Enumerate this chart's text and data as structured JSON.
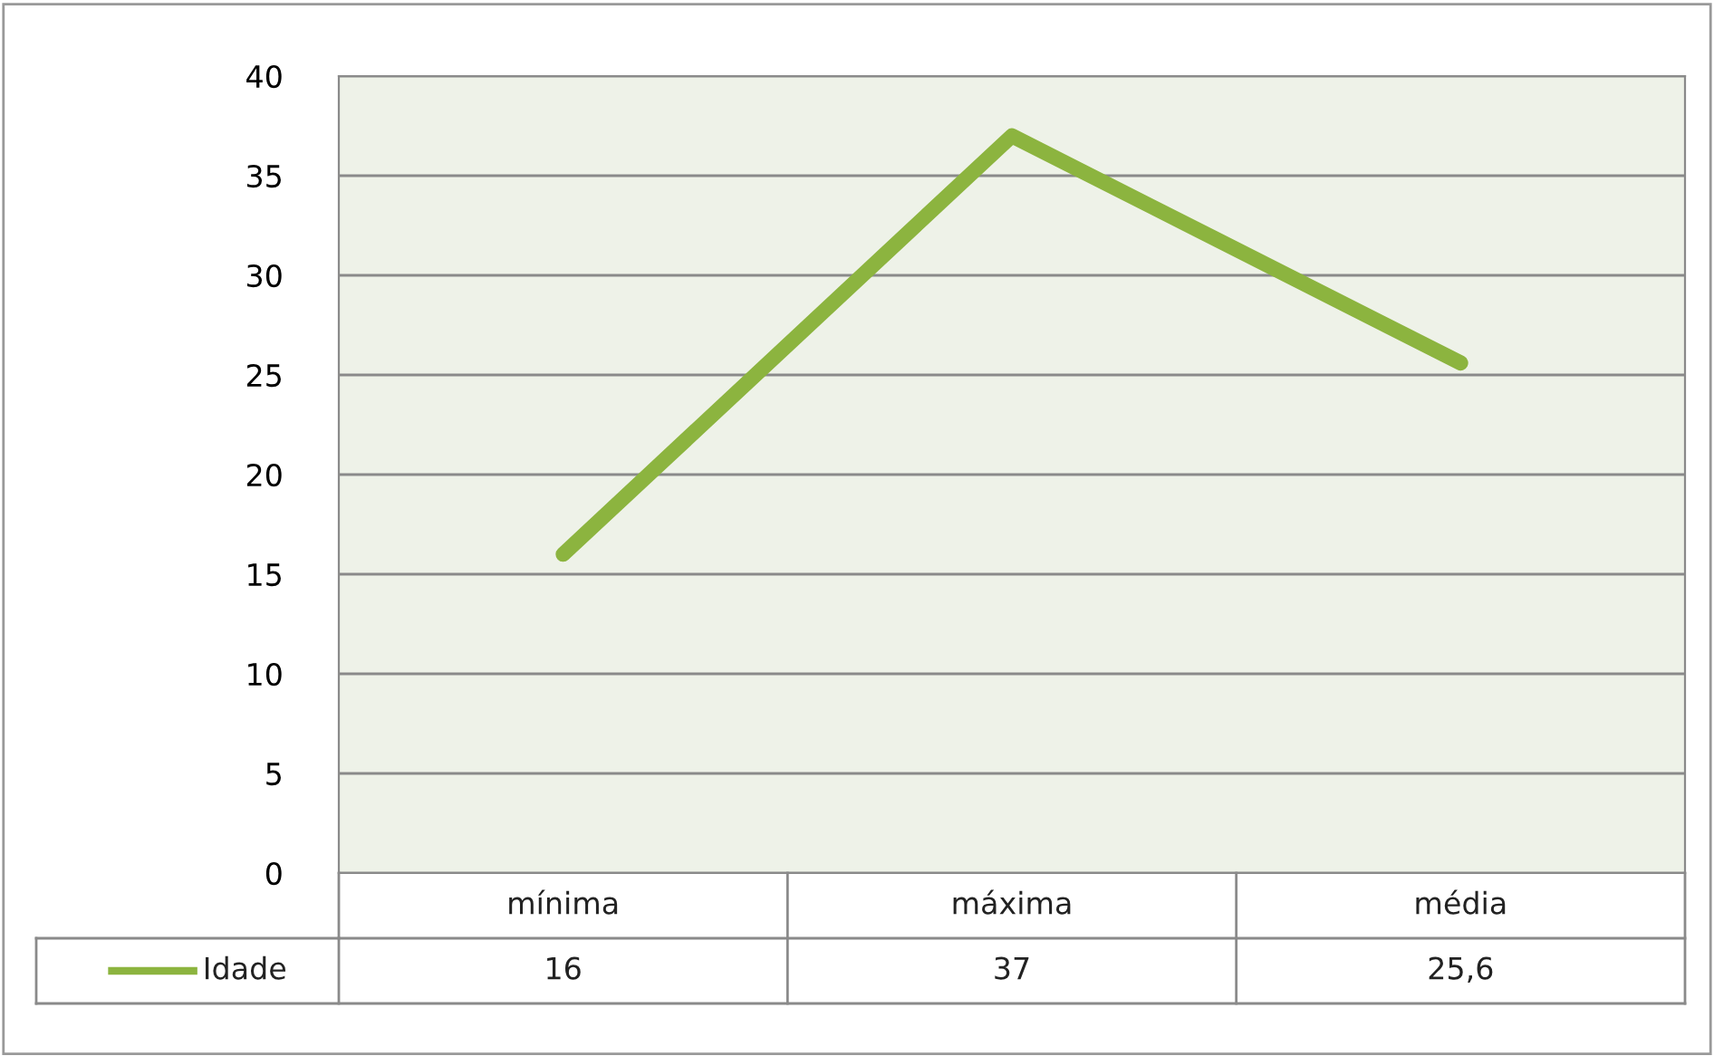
{
  "chart_data": {
    "type": "line",
    "categories": [
      "mínima",
      "máxima",
      "média"
    ],
    "series": [
      {
        "name": "Idade",
        "color": "#8cb43f",
        "values": [
          16,
          37,
          25.6
        ],
        "value_labels": [
          "16",
          "37",
          "25,6"
        ]
      }
    ],
    "ylim": [
      0,
      40
    ],
    "yticks": [
      0,
      5,
      10,
      15,
      20,
      25,
      30,
      35,
      40
    ],
    "grid": "y",
    "legend": "bottom left",
    "marker": "none",
    "line_style": "solid"
  }
}
